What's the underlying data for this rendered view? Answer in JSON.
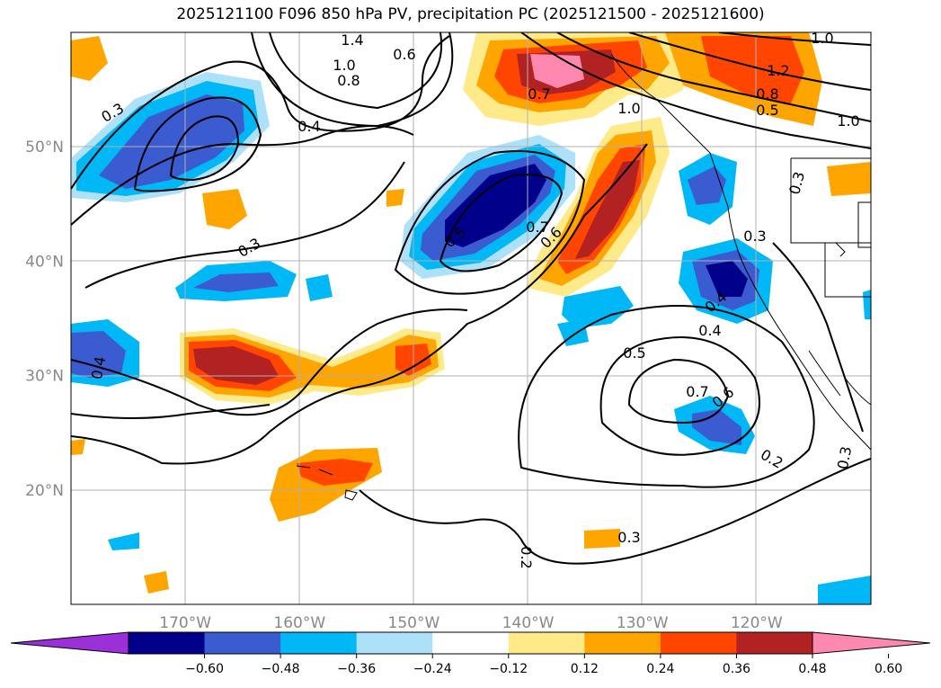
{
  "title": "2025121100 F096 850 hPa PV, precipitation PC (2025121500 - 2025121600)",
  "map": {
    "lon_range": [
      -180,
      -110
    ],
    "lat_range": [
      10,
      60
    ],
    "lat_labels": [
      {
        "lat": 50,
        "text": "50°N"
      },
      {
        "lat": 40,
        "text": "40°N"
      },
      {
        "lat": 30,
        "text": "30°N"
      },
      {
        "lat": 20,
        "text": "20°N"
      }
    ],
    "lon_labels": [
      {
        "lon": -170,
        "text": "170°W"
      },
      {
        "lon": -160,
        "text": "160°W"
      },
      {
        "lon": -150,
        "text": "150°W"
      },
      {
        "lon": -140,
        "text": "140°W"
      },
      {
        "lon": -130,
        "text": "130°W"
      },
      {
        "lon": -120,
        "text": "120°W"
      }
    ],
    "contour_labels": [
      "1.0",
      "1.2",
      "0.8",
      "0.5",
      "1.0",
      "1.4",
      "1.0",
      "0.8",
      "0.6",
      "0.3",
      "0.4",
      "0.7",
      "1.0",
      "0.5",
      "0.7",
      "0.6",
      "0.3",
      "0.3",
      "0.3",
      "0.4",
      "0.4",
      "0.4",
      "0.5",
      "0.7",
      "0.6",
      "0.2",
      "0.3",
      "0.3",
      "0.2"
    ]
  },
  "colorbar": {
    "colors": [
      "#9b30d9",
      "#00008b",
      "#3b5bd1",
      "#00b8f5",
      "#ade1fa",
      "#ffffff",
      "#ffea8a",
      "#ffa500",
      "#ff4500",
      "#b22222",
      "#ff88b0"
    ],
    "tick_labels": [
      "−0.60",
      "−0.48",
      "−0.36",
      "−0.24",
      "−0.12",
      "0.12",
      "0.24",
      "0.36",
      "0.48",
      "0.60"
    ]
  }
}
